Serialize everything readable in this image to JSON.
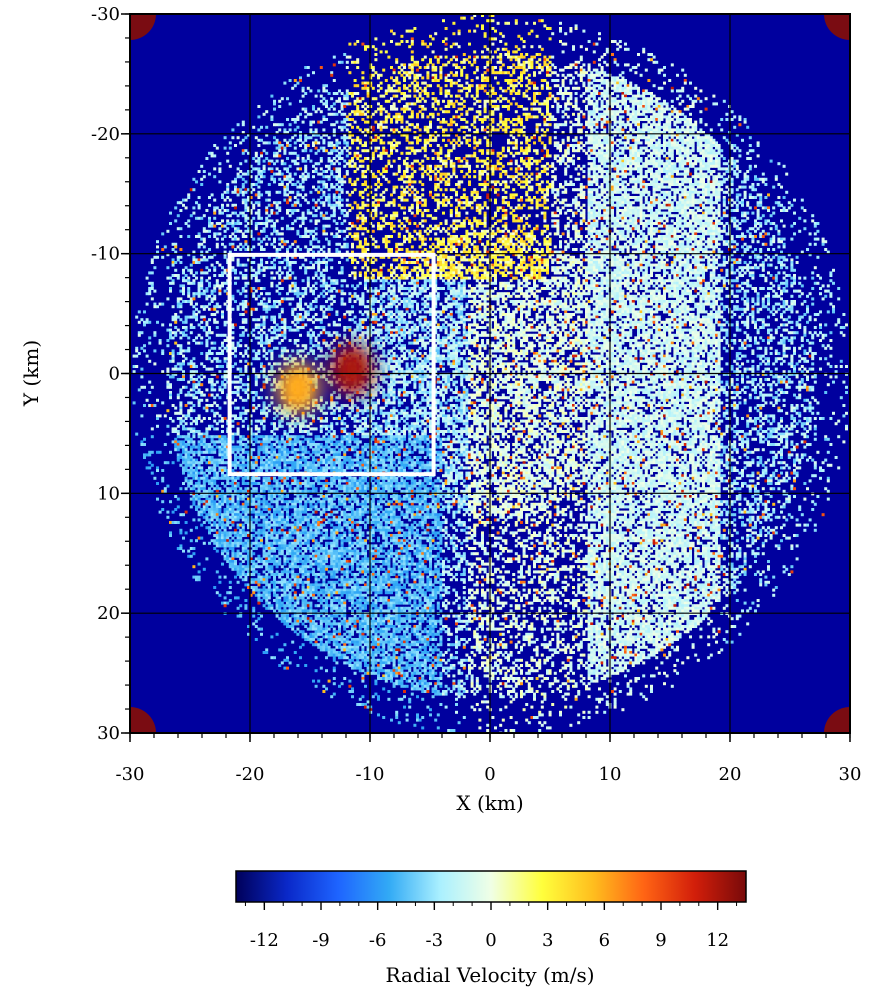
{
  "chart_data": {
    "type": "heatmap",
    "title": "",
    "xlabel": "X (km)",
    "ylabel": "Y (km)",
    "xlim": [
      -30,
      30
    ],
    "ylim": [
      -30,
      30
    ],
    "y_axis_inverted": true,
    "grid": true,
    "grid_step": 10,
    "x_ticks": [
      -30,
      -20,
      -10,
      0,
      10,
      20,
      30
    ],
    "y_ticks": [
      -30,
      -20,
      -10,
      0,
      10,
      20,
      30
    ],
    "x_tick_labels": [
      "-30",
      "-20",
      "-10",
      "0",
      "10",
      "20",
      "30"
    ],
    "y_tick_labels": [
      "-30",
      "-20",
      "-10",
      "0",
      "10",
      "20",
      "30"
    ],
    "radar_range_km": 30,
    "colorbar": {
      "label": "Radial Velocity (m/s)",
      "range": [
        -13.5,
        13.5
      ],
      "ticks": [
        -12,
        -9,
        -6,
        -3,
        0,
        3,
        6,
        9,
        12
      ],
      "tick_labels": [
        "-12",
        "-9",
        "-6",
        "-3",
        "0",
        "3",
        "6",
        "9",
        "12"
      ],
      "colors": [
        "#00005a",
        "#0a28c8",
        "#1e64ff",
        "#32aaf5",
        "#aaf0ff",
        "#f0ffe6",
        "#ffff3c",
        "#ffbe1e",
        "#ff6414",
        "#d21e0a",
        "#780a0a"
      ]
    },
    "annotations": [
      {
        "type": "box",
        "color": "#ffffff",
        "x_range": [
          -21.7,
          -4.7
        ],
        "y_range": [
          -9.9,
          8.4
        ]
      }
    ],
    "features": [
      {
        "name": "outbound velocity maximum",
        "x": -11.5,
        "y": -0.3,
        "velocity": 12
      },
      {
        "name": "inbound velocity maximum",
        "x": -16,
        "y": 1.2,
        "velocity": 6
      }
    ],
    "background_velocity": -13
  }
}
